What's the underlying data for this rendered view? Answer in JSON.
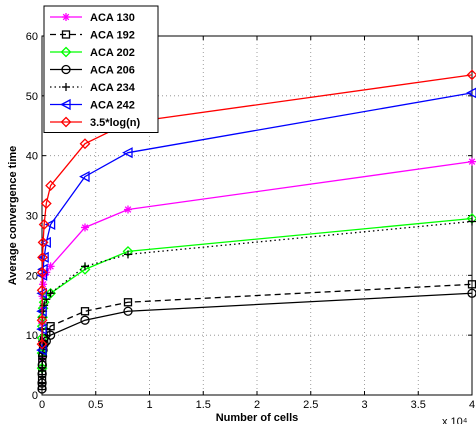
{
  "chart_data": {
    "type": "line",
    "title": "",
    "xlabel": "Number of cells",
    "ylabel": "Average convergence time",
    "x_multiplier_label": "x 10⁴",
    "xlim": [
      0,
      4
    ],
    "ylim": [
      0,
      60
    ],
    "x_ticks": [
      "0",
      "0.5",
      "1",
      "1.5",
      "2",
      "2.5",
      "3",
      "3.5",
      "4"
    ],
    "y_ticks": [
      "0",
      "10",
      "20",
      "30",
      "40",
      "50",
      "60"
    ],
    "grid": true,
    "legend_position": "top-left",
    "x": [
      0.0003,
      0.0006,
      0.0012,
      0.0025,
      0.005,
      0.01,
      0.02,
      0.04,
      0.08,
      0.4,
      0.8,
      4
    ],
    "series": [
      {
        "name": "ACA 130",
        "color": "#ff00ff",
        "marker": "asterisk",
        "dash": "solid",
        "values": [
          6.0,
          9.0,
          12.0,
          14.5,
          16.5,
          18.5,
          20.0,
          20.5,
          21.5,
          28.0,
          31.0,
          39.0
        ]
      },
      {
        "name": "ACA 192",
        "color": "#000000",
        "marker": "square",
        "dash": "dashed",
        "values": [
          1.5,
          2.5,
          4.0,
          5.5,
          7.0,
          8.5,
          9.5,
          10.5,
          11.5,
          14.0,
          15.5,
          18.5
        ]
      },
      {
        "name": "ACA 202",
        "color": "#00ff00",
        "marker": "diamond",
        "dash": "solid",
        "values": [
          4.5,
          7.0,
          9.5,
          11.5,
          13.0,
          14.5,
          15.5,
          16.5,
          17.0,
          21.0,
          24.0,
          29.5
        ]
      },
      {
        "name": "ACA 206",
        "color": "#000000",
        "marker": "circle",
        "dash": "solid",
        "values": [
          1.0,
          2.0,
          3.5,
          5.0,
          6.5,
          7.5,
          8.5,
          9.0,
          10.0,
          12.5,
          14.0,
          17.0
        ]
      },
      {
        "name": "ACA 234",
        "color": "#000000",
        "marker": "plus",
        "dash": "dotted",
        "values": [
          4.0,
          6.5,
          9.0,
          11.0,
          13.0,
          14.0,
          15.0,
          16.0,
          17.0,
          21.5,
          23.5,
          29.0
        ]
      },
      {
        "name": "ACA 242",
        "color": "#0000ff",
        "marker": "triangle-left",
        "dash": "solid",
        "values": [
          7.5,
          11.0,
          14.0,
          17.0,
          20.0,
          21.0,
          23.0,
          25.5,
          28.5,
          36.5,
          40.5,
          50.5
        ]
      },
      {
        "name": "3.5*log(n)",
        "color": "#ff0000",
        "marker": "diamond",
        "dash": "solid",
        "values": [
          8.5,
          12.5,
          17.5,
          20.5,
          23.0,
          25.5,
          28.5,
          32.0,
          35.0,
          42.0,
          45.5,
          53.5
        ]
      }
    ]
  }
}
